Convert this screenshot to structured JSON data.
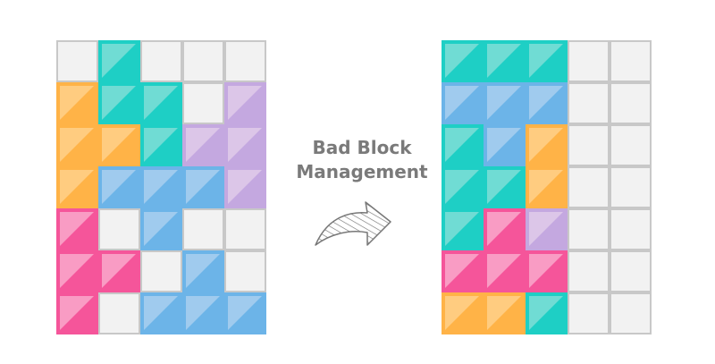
{
  "title_line1": "Bad Block",
  "title_line2": "Management",
  "colors": {
    "empty": {
      "fill": "#f2f2f2",
      "border": "#c8c8c8"
    },
    "teal": {
      "fill": "#1ecfc5",
      "light": "#70dcd4"
    },
    "orange": {
      "fill": "#ffb347",
      "light": "#ffcc80"
    },
    "purple": {
      "fill": "#c4a8e0",
      "light": "#dcc6e8"
    },
    "blue": {
      "fill": "#6cb4e8",
      "light": "#a0cbee"
    },
    "pink": {
      "fill": "#f5559a",
      "light": "#f99cc4"
    }
  },
  "before_grid": [
    [
      "empty",
      "teal",
      "empty",
      "empty",
      "empty"
    ],
    [
      "orange",
      "teal",
      "teal",
      "empty",
      "purple"
    ],
    [
      "orange",
      "orange",
      "teal",
      "purple",
      "purple"
    ],
    [
      "orange",
      "blue",
      "blue",
      "blue",
      "purple"
    ],
    [
      "pink",
      "empty",
      "blue",
      "empty",
      "empty"
    ],
    [
      "pink",
      "pink",
      "empty",
      "blue",
      "empty"
    ],
    [
      "pink",
      "empty",
      "blue",
      "blue",
      "blue"
    ]
  ],
  "after_grid": [
    [
      "teal",
      "teal",
      "teal",
      "empty",
      "empty"
    ],
    [
      "blue",
      "blue",
      "blue",
      "empty",
      "empty"
    ],
    [
      "teal",
      "blue",
      "orange",
      "empty",
      "empty"
    ],
    [
      "teal",
      "teal",
      "orange",
      "empty",
      "empty"
    ],
    [
      "teal",
      "pink",
      "purple",
      "empty",
      "empty"
    ],
    [
      "pink",
      "pink",
      "pink",
      "empty",
      "empty"
    ],
    [
      "orange",
      "orange",
      "teal",
      "empty",
      "empty"
    ]
  ],
  "arrow_icon": "curved-arrow-right"
}
